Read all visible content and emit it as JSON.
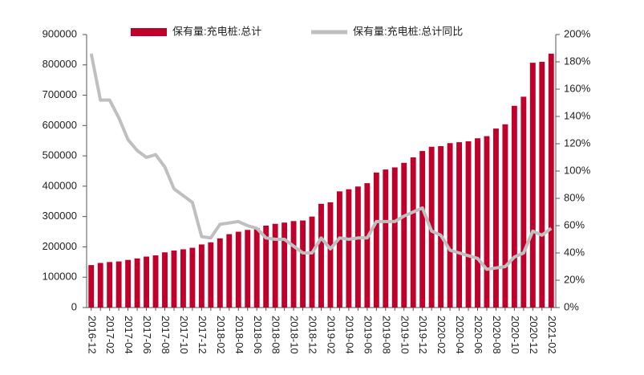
{
  "chart_data": {
    "type": "bar_line",
    "categories": [
      "2016-12",
      null,
      "2017-02",
      null,
      "2017-04",
      null,
      "2017-06",
      null,
      "2017-08",
      null,
      "2017-10",
      null,
      "2017-12",
      null,
      "2018-02",
      null,
      "2018-04",
      null,
      "2018-06",
      null,
      "2018-08",
      null,
      "2018-10",
      null,
      "2018-12",
      null,
      "2019-02",
      null,
      "2019-04",
      null,
      "2019-06",
      null,
      "2019-08",
      null,
      "2019-10",
      null,
      "2019-12",
      null,
      "2020-02",
      null,
      "2020-04",
      null,
      "2020-06",
      null,
      "2020-08",
      null,
      "2020-10",
      null,
      "2020-12",
      null,
      "2021-02"
    ],
    "series": [
      {
        "name": "保有量:充电桩:总计",
        "color": "#c0002b",
        "kind": "bar",
        "values": [
          140000,
          147000,
          150000,
          152000,
          157000,
          162000,
          168000,
          172000,
          182000,
          188000,
          192000,
          197000,
          208000,
          215000,
          228000,
          242000,
          250000,
          256000,
          262000,
          270000,
          276000,
          280000,
          285000,
          287000,
          300000,
          342000,
          347000,
          383000,
          390000,
          399000,
          410000,
          445000,
          455000,
          462000,
          477000,
          495000,
          516000,
          530000,
          532000,
          542000,
          545000,
          548000,
          558000,
          565000,
          590000,
          604000,
          665000,
          695000,
          807000,
          810000,
          837000
        ]
      },
      {
        "name": "保有量:充电桩:总计同比",
        "color": "#bfbfbf",
        "kind": "line",
        "axis": "y2",
        "values": [
          186,
          152,
          152,
          139,
          123,
          115,
          110,
          112,
          103,
          87,
          82,
          77,
          52,
          51,
          61,
          62,
          63,
          60,
          58,
          51,
          50,
          50,
          45,
          40,
          40,
          51,
          43,
          51,
          50,
          51,
          51,
          63,
          63,
          63,
          67,
          70,
          73,
          56,
          53,
          42,
          40,
          38,
          36,
          28,
          29,
          30,
          37,
          40,
          56,
          53,
          58
        ]
      }
    ],
    "ylim": [
      0,
      900000
    ],
    "yticks": [
      0,
      100000,
      200000,
      300000,
      400000,
      500000,
      600000,
      700000,
      800000,
      900000
    ],
    "y2lim": [
      0,
      200
    ],
    "y2ticks": [
      {
        "value": 0,
        "label": "0%"
      },
      {
        "value": 20,
        "label": "20%"
      },
      {
        "value": 40,
        "label": "40%"
      },
      {
        "value": 60,
        "label": "60%"
      },
      {
        "value": 80,
        "label": "80%"
      },
      {
        "value": 100,
        "label": "100%"
      },
      {
        "value": 120,
        "label": "120%"
      },
      {
        "value": 140,
        "label": "140%"
      },
      {
        "value": 160,
        "label": "160%"
      },
      {
        "value": 180,
        "label": "180%"
      },
      {
        "value": 200,
        "label": "200%"
      }
    ],
    "legend": "top"
  }
}
